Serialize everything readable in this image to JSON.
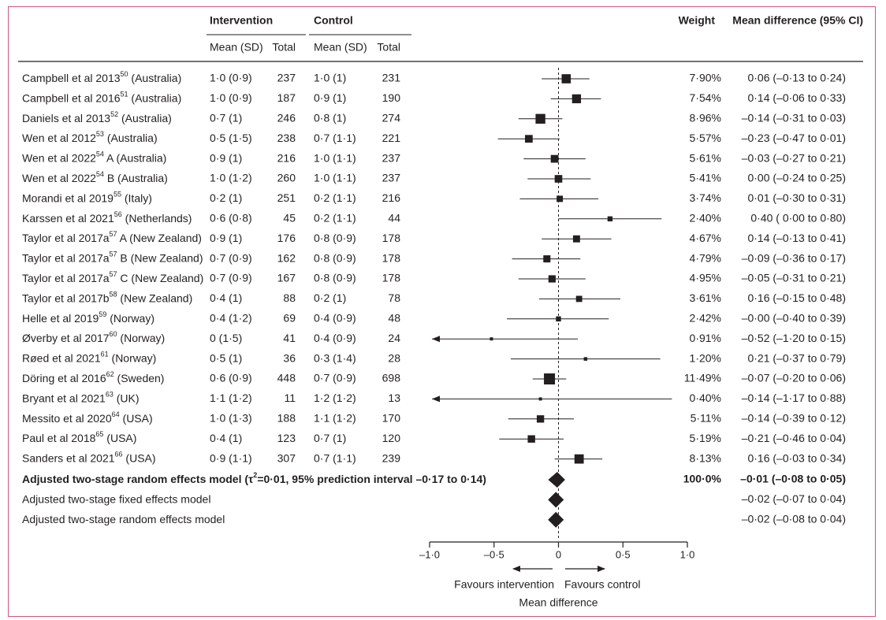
{
  "chart_data": {
    "type": "forest",
    "headers": {
      "intervention": "Intervention",
      "control": "Control",
      "mean_sd": "Mean (SD)",
      "total": "Total",
      "weight": "Weight",
      "ci": "Mean difference (95% CI)"
    },
    "studies": [
      {
        "name": "Campbell et al 2013",
        "ref": "50",
        "region": " (Australia)",
        "i_mean": "1·0 (0·9)",
        "i_n": "237",
        "c_mean": "1·0 (1)",
        "c_n": "231",
        "weight": "7·90%",
        "ci": "0·06 (–0·13 to 0·24)",
        "est": 0.06,
        "lo": -0.13,
        "hi": 0.24
      },
      {
        "name": "Campbell et al 2016",
        "ref": "51",
        "region": " (Australia)",
        "i_mean": "1·0 (0·9)",
        "i_n": "187",
        "c_mean": "0·9 (1)",
        "c_n": "190",
        "weight": "7·54%",
        "ci": "0·14 (–0·06 to 0·33)",
        "est": 0.14,
        "lo": -0.06,
        "hi": 0.33
      },
      {
        "name": "Daniels et al 2013",
        "ref": "52",
        "region": " (Australia)",
        "i_mean": "0·7 (1)",
        "i_n": "246",
        "c_mean": "0·8 (1)",
        "c_n": "274",
        "weight": "8·96%",
        "ci": "–0·14 (–0·31 to 0·03)",
        "est": -0.14,
        "lo": -0.31,
        "hi": 0.03
      },
      {
        "name": "Wen et al 2012",
        "ref": "53",
        "region": " (Australia)",
        "i_mean": "0·5 (1·5)",
        "i_n": "238",
        "c_mean": "0·7 (1·1)",
        "c_n": "221",
        "weight": "5·57%",
        "ci": "–0·23 (–0·47 to 0·01)",
        "est": -0.23,
        "lo": -0.47,
        "hi": 0.01
      },
      {
        "name": "Wen et al 2022",
        "ref": "54",
        "region": " A (Australia)",
        "i_mean": "0·9 (1)",
        "i_n": "216",
        "c_mean": "1·0 (1·1)",
        "c_n": "237",
        "weight": "5·61%",
        "ci": "–0·03 (–0·27 to 0·21)",
        "est": -0.03,
        "lo": -0.27,
        "hi": 0.21
      },
      {
        "name": "Wen et al 2022",
        "ref": "54",
        "region": " B (Australia)",
        "i_mean": "1·0 (1·2)",
        "i_n": "260",
        "c_mean": "1·0 (1·1)",
        "c_n": "237",
        "weight": "5·41%",
        "ci": "0·00 (–0·24 to 0·25)",
        "est": 0.0,
        "lo": -0.24,
        "hi": 0.25
      },
      {
        "name": "Morandi et al 2019",
        "ref": "55",
        "region": " (Italy)",
        "i_mean": "0·2 (1)",
        "i_n": "251",
        "c_mean": "0·2 (1·1)",
        "c_n": "216",
        "weight": "3·74%",
        "ci": "0·01 (–0·30 to 0·31)",
        "est": 0.01,
        "lo": -0.3,
        "hi": 0.31
      },
      {
        "name": "Karssen et al 2021",
        "ref": "56",
        "region": " (Netherlands)",
        "i_mean": "0·6 (0·8)",
        "i_n": "45",
        "c_mean": "0·2 (1·1)",
        "c_n": "44",
        "weight": "2·40%",
        "ci": "0·40 ( 0·00 to 0·80)",
        "est": 0.4,
        "lo": 0.0,
        "hi": 0.8
      },
      {
        "name": "Taylor et al 2017a",
        "ref": "57",
        "region": " A (New Zealand)",
        "i_mean": "0·9 (1)",
        "i_n": "176",
        "c_mean": "0·8 (0·9)",
        "c_n": "178",
        "weight": "4·67%",
        "ci": "0·14 (–0·13 to 0·41)",
        "est": 0.14,
        "lo": -0.13,
        "hi": 0.41
      },
      {
        "name": "Taylor et al 2017a",
        "ref": "57",
        "region": " B (New Zealand)",
        "i_mean": "0·7 (0·9)",
        "i_n": "162",
        "c_mean": "0·8 (0·9)",
        "c_n": "178",
        "weight": "4·79%",
        "ci": "–0·09 (–0·36 to 0·17)",
        "est": -0.09,
        "lo": -0.36,
        "hi": 0.17
      },
      {
        "name": "Taylor et al 2017a",
        "ref": "57",
        "region": " C (New Zealand)",
        "i_mean": "0·7 (0·9)",
        "i_n": "167",
        "c_mean": "0·8 (0·9)",
        "c_n": "178",
        "weight": "4·95%",
        "ci": "–0·05 (–0·31 to 0·21)",
        "est": -0.05,
        "lo": -0.31,
        "hi": 0.21
      },
      {
        "name": "Taylor et al 2017b",
        "ref": "58",
        "region": " (New Zealand)",
        "i_mean": "0·4 (1)",
        "i_n": "88",
        "c_mean": "0·2 (1)",
        "c_n": "78",
        "weight": "3·61%",
        "ci": "0·16 (–0·15 to 0·48)",
        "est": 0.16,
        "lo": -0.15,
        "hi": 0.48
      },
      {
        "name": "Helle et al 2019",
        "ref": "59",
        "region": " (Norway)",
        "i_mean": "0·4 (1·2)",
        "i_n": "69",
        "c_mean": "0·4 (0·9)",
        "c_n": "48",
        "weight": "2·42%",
        "ci": "–0·00 (–0·40 to 0·39)",
        "est": 0.0,
        "lo": -0.4,
        "hi": 0.39
      },
      {
        "name": "Øverby et al 2017",
        "ref": "60",
        "region": " (Norway)",
        "i_mean": "0 (1·5)",
        "i_n": "41",
        "c_mean": "0·4 (0·9)",
        "c_n": "24",
        "weight": "0·91%",
        "ci": "–0·52 (–1·20 to 0·15)",
        "est": -0.52,
        "lo": -1.2,
        "hi": 0.15
      },
      {
        "name": "Røed et al 2021",
        "ref": "61",
        "region": " (Norway)",
        "i_mean": "0·5 (1)",
        "i_n": "36",
        "c_mean": "0·3 (1·4)",
        "c_n": "28",
        "weight": "1·20%",
        "ci": "0·21 (–0·37 to 0·79)",
        "est": 0.21,
        "lo": -0.37,
        "hi": 0.79
      },
      {
        "name": "Döring et al 2016",
        "ref": "62",
        "region": " (Sweden)",
        "i_mean": "0·6 (0·9)",
        "i_n": "448",
        "c_mean": "0·7 (0·9)",
        "c_n": "698",
        "weight": "11·49%",
        "ci": "–0·07 (–0·20 to 0·06)",
        "est": -0.07,
        "lo": -0.2,
        "hi": 0.06
      },
      {
        "name": "Bryant et al 2021",
        "ref": "63",
        "region": " (UK)",
        "i_mean": "1·1 (1·2)",
        "i_n": "11",
        "c_mean": "1·2 (1·2)",
        "c_n": "13",
        "weight": "0·40%",
        "ci": "–0·14 (–1·17 to 0·88)",
        "est": -0.14,
        "lo": -1.17,
        "hi": 0.88
      },
      {
        "name": "Messito et al 2020",
        "ref": "64",
        "region": " (USA)",
        "i_mean": "1·0 (1·3)",
        "i_n": "188",
        "c_mean": "1·1 (1·2)",
        "c_n": "170",
        "weight": "5·11%",
        "ci": "–0·14 (–0·39 to 0·12)",
        "est": -0.14,
        "lo": -0.39,
        "hi": 0.12
      },
      {
        "name": "Paul et al 2018",
        "ref": "65",
        "region": " (USA)",
        "i_mean": "0·4 (1)",
        "i_n": "123",
        "c_mean": "0·7 (1)",
        "c_n": "120",
        "weight": "5·19%",
        "ci": "–0·21 (–0·46 to 0·04)",
        "est": -0.21,
        "lo": -0.46,
        "hi": 0.04
      },
      {
        "name": "Sanders et al 2021",
        "ref": "66",
        "region": " (USA)",
        "i_mean": "0·9 (1·1)",
        "i_n": "307",
        "c_mean": "0·7 (1·1)",
        "c_n": "239",
        "weight": "8·13%",
        "ci": "0·16 (–0·03 to 0·34)",
        "est": 0.16,
        "lo": -0.03,
        "hi": 0.34
      }
    ],
    "pooled": [
      {
        "label_pre": "Adjusted two-stage random effects model (τ",
        "label_sup": "2",
        "label_post": "=0·01, 95% prediction interval –0·17 to 0·14)",
        "weight": "100·0%",
        "ci": "–0·01 (–0·08 to 0·05)",
        "est": -0.01,
        "lo": -0.08,
        "hi": 0.05,
        "bold": true
      },
      {
        "label_pre": "Adjusted two-stage fixed effects model",
        "label_sup": "",
        "label_post": "",
        "weight": "",
        "ci": "–0·02 (–0·07 to 0·04)",
        "est": -0.02,
        "lo": -0.07,
        "hi": 0.04,
        "bold": false
      },
      {
        "label_pre": "Adjusted two-stage random effects model",
        "label_sup": "",
        "label_post": "",
        "weight": "",
        "ci": "–0·02 (–0·08 to 0·04)",
        "est": -0.02,
        "lo": -0.08,
        "hi": 0.04,
        "bold": false
      }
    ],
    "x_axis": {
      "range": [
        -1.0,
        1.0
      ],
      "ticks": [
        -1.0,
        -0.5,
        0,
        0.5,
        1.0
      ],
      "tick_labels": [
        "–1·0",
        "–0·5",
        "0",
        "0·5",
        "1·0"
      ],
      "label": "Mean difference",
      "favours_left": "Favours intervention",
      "favours_right": "Favours control"
    },
    "colors": {
      "frame": "#d2557a",
      "ink": "#231f20"
    }
  }
}
